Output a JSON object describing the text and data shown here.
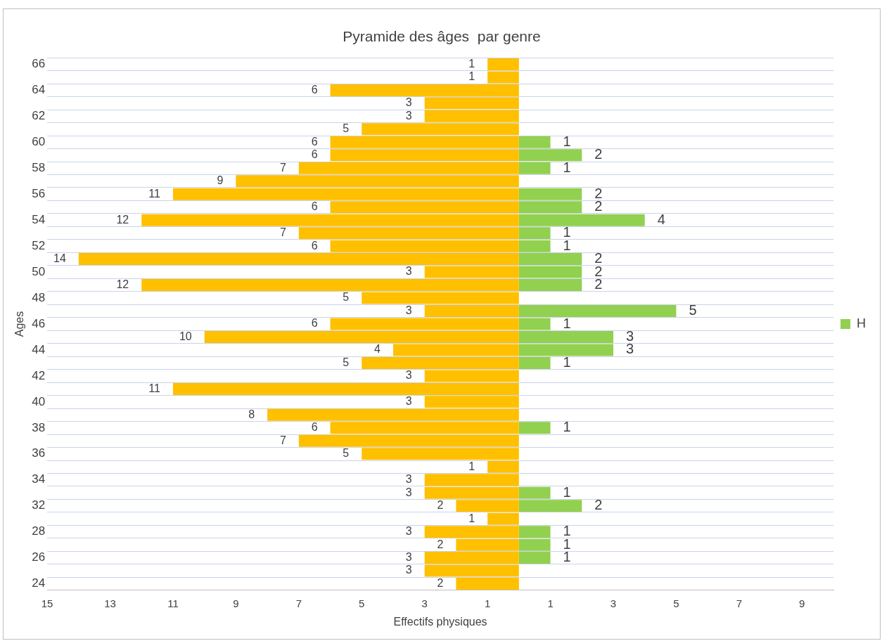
{
  "chart_data": {
    "type": "bar",
    "orientation": "horizontal",
    "title": "Pyramide des âges  par genre",
    "xlabel": "Effectifs physiques",
    "ylabel": "Ages",
    "categories": [
      "66",
      null,
      "64",
      null,
      "62",
      null,
      "60",
      null,
      "58",
      null,
      "56",
      null,
      "54",
      null,
      "52",
      null,
      "50",
      null,
      "48",
      null,
      "46",
      null,
      "44",
      null,
      "42",
      null,
      "40",
      null,
      "38",
      null,
      "36",
      null,
      "34",
      null,
      "32",
      null,
      "28",
      null,
      "26",
      null,
      "24"
    ],
    "series": [
      {
        "color": "#ffc000",
        "values": [
          1,
          1,
          6,
          3,
          3,
          5,
          6,
          6,
          7,
          9,
          11,
          6,
          12,
          7,
          6,
          14,
          3,
          12,
          5,
          3,
          6,
          10,
          4,
          5,
          3,
          11,
          3,
          8,
          6,
          7,
          5,
          1,
          3,
          3,
          2,
          1,
          3,
          2,
          3,
          3,
          2
        ],
        "base": [
          -1,
          -1,
          -6,
          -3,
          -3,
          -5,
          -6,
          -6,
          -7,
          -9,
          -11,
          -6,
          -12,
          -7,
          -6,
          -14,
          -3,
          -12,
          -5,
          -3,
          -6,
          -10,
          -4,
          -5,
          -3,
          -11,
          -3,
          -8,
          -6,
          -7,
          -5,
          -1,
          -3,
          -3,
          -2,
          -1,
          -3,
          -2,
          -3,
          -3,
          -2
        ]
      },
      {
        "name": "H",
        "color": "#92d050",
        "values": [
          null,
          null,
          null,
          null,
          null,
          null,
          1,
          2,
          1,
          null,
          2,
          2,
          4,
          1,
          1,
          2,
          2,
          2,
          null,
          5,
          1,
          3,
          3,
          1,
          null,
          null,
          null,
          null,
          1,
          null,
          null,
          null,
          null,
          1,
          2,
          null,
          1,
          1,
          1,
          null,
          null
        ]
      }
    ],
    "xlim": [
      -15,
      10
    ],
    "xticks": [
      {
        "value": -15,
        "label": "15"
      },
      {
        "value": -13,
        "label": "13"
      },
      {
        "value": -11,
        "label": "11"
      },
      {
        "value": -9,
        "label": "9"
      },
      {
        "value": -7,
        "label": "7"
      },
      {
        "value": -5,
        "label": "5"
      },
      {
        "value": -3,
        "label": "3"
      },
      {
        "value": -1,
        "label": "1"
      },
      1,
      3,
      5,
      7,
      9
    ],
    "data_labels": true,
    "grid": "y",
    "legend": "right"
  }
}
